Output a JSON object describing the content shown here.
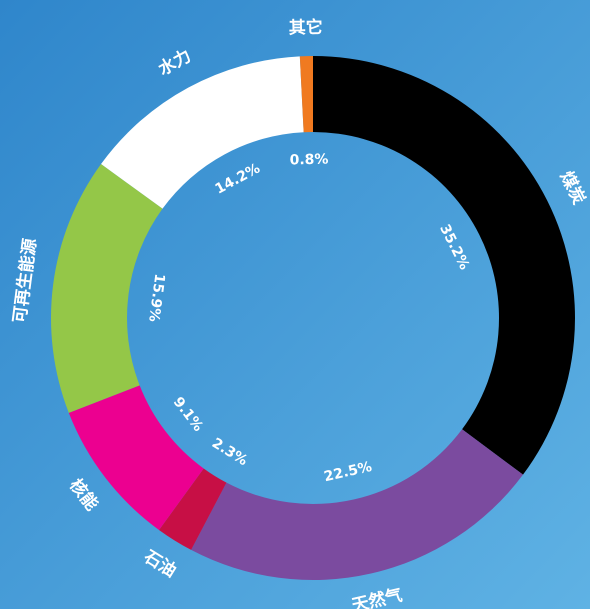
{
  "chart_data": {
    "type": "donut",
    "categories": [
      "煤炭",
      "天然气",
      "石油",
      "核能",
      "可再生能源",
      "水力",
      "其它"
    ],
    "values": [
      35.2,
      22.5,
      2.3,
      9.1,
      15.9,
      14.2,
      0.8
    ],
    "value_labels": [
      "35.2%",
      "22.5%",
      "2.3%",
      "9.1%",
      "15.9%",
      "14.2%",
      "0.8%"
    ],
    "colors": [
      "#000000",
      "#7b4b9f",
      "#c70f45",
      "#ec0090",
      "#94c748",
      "#ffffff",
      "#f07a20"
    ]
  }
}
